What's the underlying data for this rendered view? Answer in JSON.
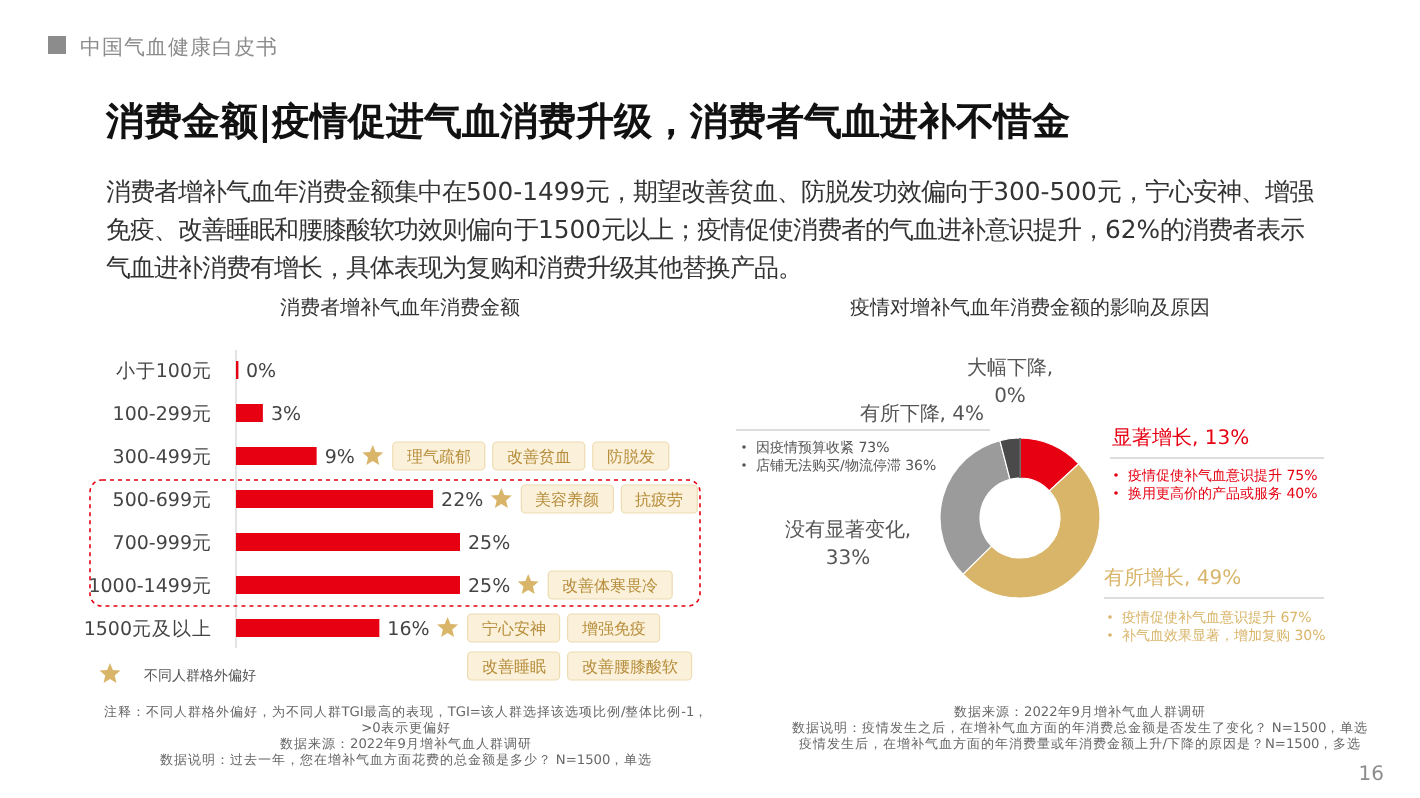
{
  "chart_data": [
    {
      "type": "other",
      "title": "消费金额|疫情促进气血消费升级，消费者气血进补不惜金",
      "subtitle": "消费者增补气血年消费金额集中在500-1499元，期望改善贫血、防脱发功效偏向于300-500元，宁心安神、增强免疫、改善睡眠和腰膝酸软功效则偏向于1500元以上；疫情促使消费者的气血进补意识提升，62%的消费者表示气血进补消费有增长，具体表现为复购和消费升级其他替换产品。",
      "annotations": [
        "中国气血健康白皮书",
        "16"
      ]
    },
    {
      "type": "bar",
      "orientation": "horizontal",
      "title": "消费者增补气血年消费金额",
      "categories": [
        "小于100元",
        "100-299元",
        "300-499元",
        "500-699元",
        "700-999元",
        "1000-1499元",
        "1500元及以上"
      ],
      "values": [
        0,
        3,
        9,
        22,
        25,
        25,
        16
      ],
      "value_labels": [
        "0%",
        "3%",
        "9%",
        "22%",
        "25%",
        "25%",
        "16%"
      ],
      "color": "#e60012",
      "annotations": [
        "理气疏郁",
        "改善贫血",
        "防脱发",
        "美容养颜",
        "抗疲劳",
        "改善体寒畏冷",
        "宁心安神",
        "增强免疫",
        "改善睡眠",
        "改善腰膝酸软",
        "不同人群格外偏好",
        "注释：不同人群格外偏好，为不同人群TGI最高的表现，TGI=该人群选择该选项比例/整体比例-1，>0表示更偏好",
        "数据来源：2022年9月增补气血人群调研",
        "数据说明：过去一年，您在增补气血方面花费的总金额是多少？ N=1500，单选"
      ]
    },
    {
      "type": "donut",
      "title": "疫情对增补气血年消费金额的影响及原因",
      "categories": [
        "显著增长, 13%",
        "有所增长, 49%",
        "没有显著变化, 33%",
        "有所下降, 4%",
        "大幅下降, 0%"
      ],
      "values": [
        13,
        49,
        33,
        4,
        0
      ],
      "colors": [
        "#e60012",
        "#d9b56a",
        "#9b9b9b",
        "#4a4a4a",
        "#222222"
      ],
      "annotations": [
        "疫情促使补气血意识提升 75%",
        "换用更高价的产品或服务 40%",
        "疫情促使补气血意识提升 67%",
        "补气血效果显著，增加复购 30%",
        "因疫情预算收紧 73%",
        "店铺无法购买/物流停滞 36%",
        "数据来源：2022年9月增补气血人群调研",
        "数据说明：疫情发生之后，在增补气血方面的年消费总金额是否发生了变化？ N=1500，单选",
        "疫情发生后，在增补气血方面的年消费量或年消费金额上升/下降的原因是？N=1500，多选"
      ]
    }
  ]
}
